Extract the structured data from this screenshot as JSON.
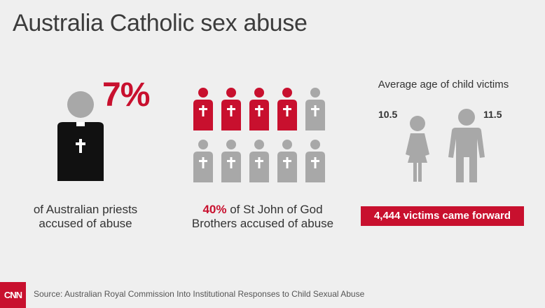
{
  "title": "Australia Catholic sex abuse",
  "priests": {
    "stat": "7%",
    "caption_line1": "of Australian priests",
    "caption_line2": "accused of abuse"
  },
  "brothers": {
    "stat": "40%",
    "caption_rest": " of St John of God",
    "caption_line2": "Brothers accused of abuse",
    "highlighted_count": 4,
    "total_count": 10
  },
  "ages": {
    "title": "Average age of child victims",
    "girl_age": "10.5",
    "boy_age": "11.5"
  },
  "victims_banner": "4,444 victims came forward",
  "footer": {
    "logo": "CNN",
    "source": "Source: Australian Royal Commission Into Institutional Responses to Child Sexual Abuse"
  },
  "colors": {
    "accent": "#c8102e",
    "gray": "#a8a8a8",
    "black": "#111111",
    "background": "#efefef"
  }
}
